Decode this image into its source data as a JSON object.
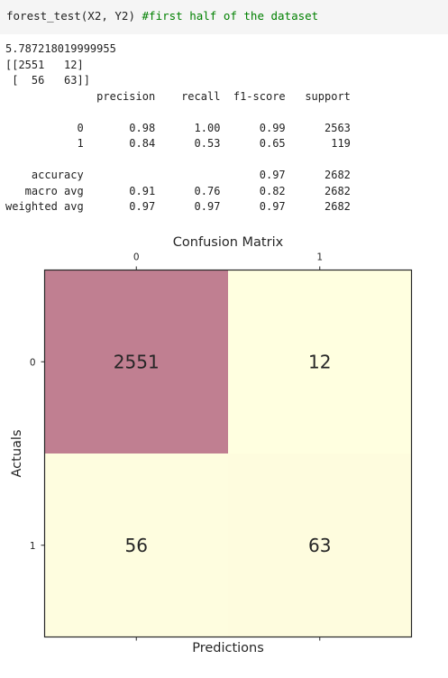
{
  "code_cell": {
    "code": "forest_test(X2, Y2) ",
    "comment": "#first half of the dataset"
  },
  "output": {
    "lines": [
      "5.787218019999955",
      "[[2551   12]",
      " [  56   63]]",
      "              precision    recall  f1-score   support",
      "",
      "           0       0.98      1.00      0.99      2563",
      "           1       0.84      0.53      0.65       119",
      "",
      "    accuracy                           0.97      2682",
      "   macro avg       0.91      0.76      0.82      2682",
      "weighted avg       0.97      0.97      0.97      2682"
    ]
  },
  "chart_data": {
    "type": "heatmap",
    "title": "Confusion Matrix",
    "xlabel": "Predictions",
    "ylabel": "Actuals",
    "x_ticks": [
      "0",
      "1"
    ],
    "y_ticks": [
      "0",
      "1"
    ],
    "matrix": [
      [
        2551,
        12
      ],
      [
        56,
        63
      ]
    ],
    "cell_labels": [
      [
        "2551",
        "12"
      ],
      [
        "56",
        "63"
      ]
    ],
    "colors": {
      "high": "#c07f91",
      "low": "#ffffe0"
    },
    "x_axis_position": "top",
    "grid": false
  }
}
